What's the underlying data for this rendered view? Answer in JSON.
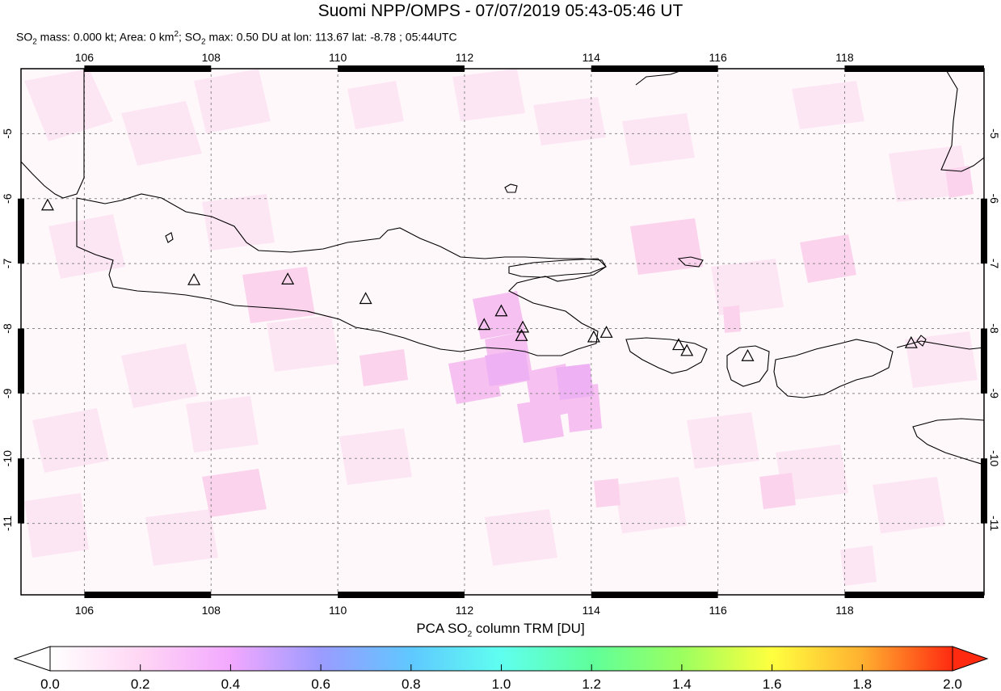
{
  "title": "Suomi NPP/OMPS - 07/07/2019 05:43-05:46 UT",
  "subtitle": {
    "mass_prefix": "SO",
    "mass_sub": "2",
    "mass_text": " mass: 0.000 kt; Area: 0 km",
    "area_sup": "2",
    "max_prefix": "; SO",
    "max_sub": "2",
    "max_text": " max: 0.50 DU at lon: 113.67 lat: -8.78 ; 05:44UTC"
  },
  "map": {
    "lon_ticks": [
      "106",
      "108",
      "110",
      "112",
      "114",
      "116",
      "118"
    ],
    "lat_ticks": [
      "-5",
      "-6",
      "-7",
      "-8",
      "-9",
      "-10",
      "-11"
    ],
    "lon_range": [
      105,
      120.2
    ],
    "lat_range": [
      -12.1,
      -4.0
    ],
    "grid": true,
    "volcano_icon": "triangle-outline",
    "volcanoes": [
      {
        "lon": 105.42,
        "lat": -6.1
      },
      {
        "lon": 107.73,
        "lat": -7.25
      },
      {
        "lon": 109.21,
        "lat": -7.24
      },
      {
        "lon": 110.44,
        "lat": -7.54
      },
      {
        "lon": 112.31,
        "lat": -7.94
      },
      {
        "lon": 112.58,
        "lat": -7.73
      },
      {
        "lon": 112.92,
        "lat": -7.98
      },
      {
        "lon": 112.9,
        "lat": -8.11
      },
      {
        "lon": 114.04,
        "lat": -8.13
      },
      {
        "lon": 114.24,
        "lat": -8.06
      },
      {
        "lon": 115.38,
        "lat": -8.25
      },
      {
        "lon": 115.51,
        "lat": -8.34
      },
      {
        "lon": 116.47,
        "lat": -8.42
      },
      {
        "lon": 119.05,
        "lat": -8.22
      }
    ]
  },
  "colorbar": {
    "title_prefix": "PCA SO",
    "title_sub": "2",
    "title_suffix": " column TRM [DU]",
    "ticks": [
      "0.0",
      "0.2",
      "0.4",
      "0.6",
      "0.8",
      "1.0",
      "1.2",
      "1.4",
      "1.6",
      "1.8",
      "2.0"
    ],
    "range": [
      0,
      2
    ],
    "colors": [
      "#ffffff",
      "#ffd6f4",
      "#f2a8ff",
      "#9b9bff",
      "#5fc8ff",
      "#5ffff0",
      "#5fff9b",
      "#9bff5f",
      "#ffff3f",
      "#ffb030",
      "#ff2a10"
    ]
  }
}
